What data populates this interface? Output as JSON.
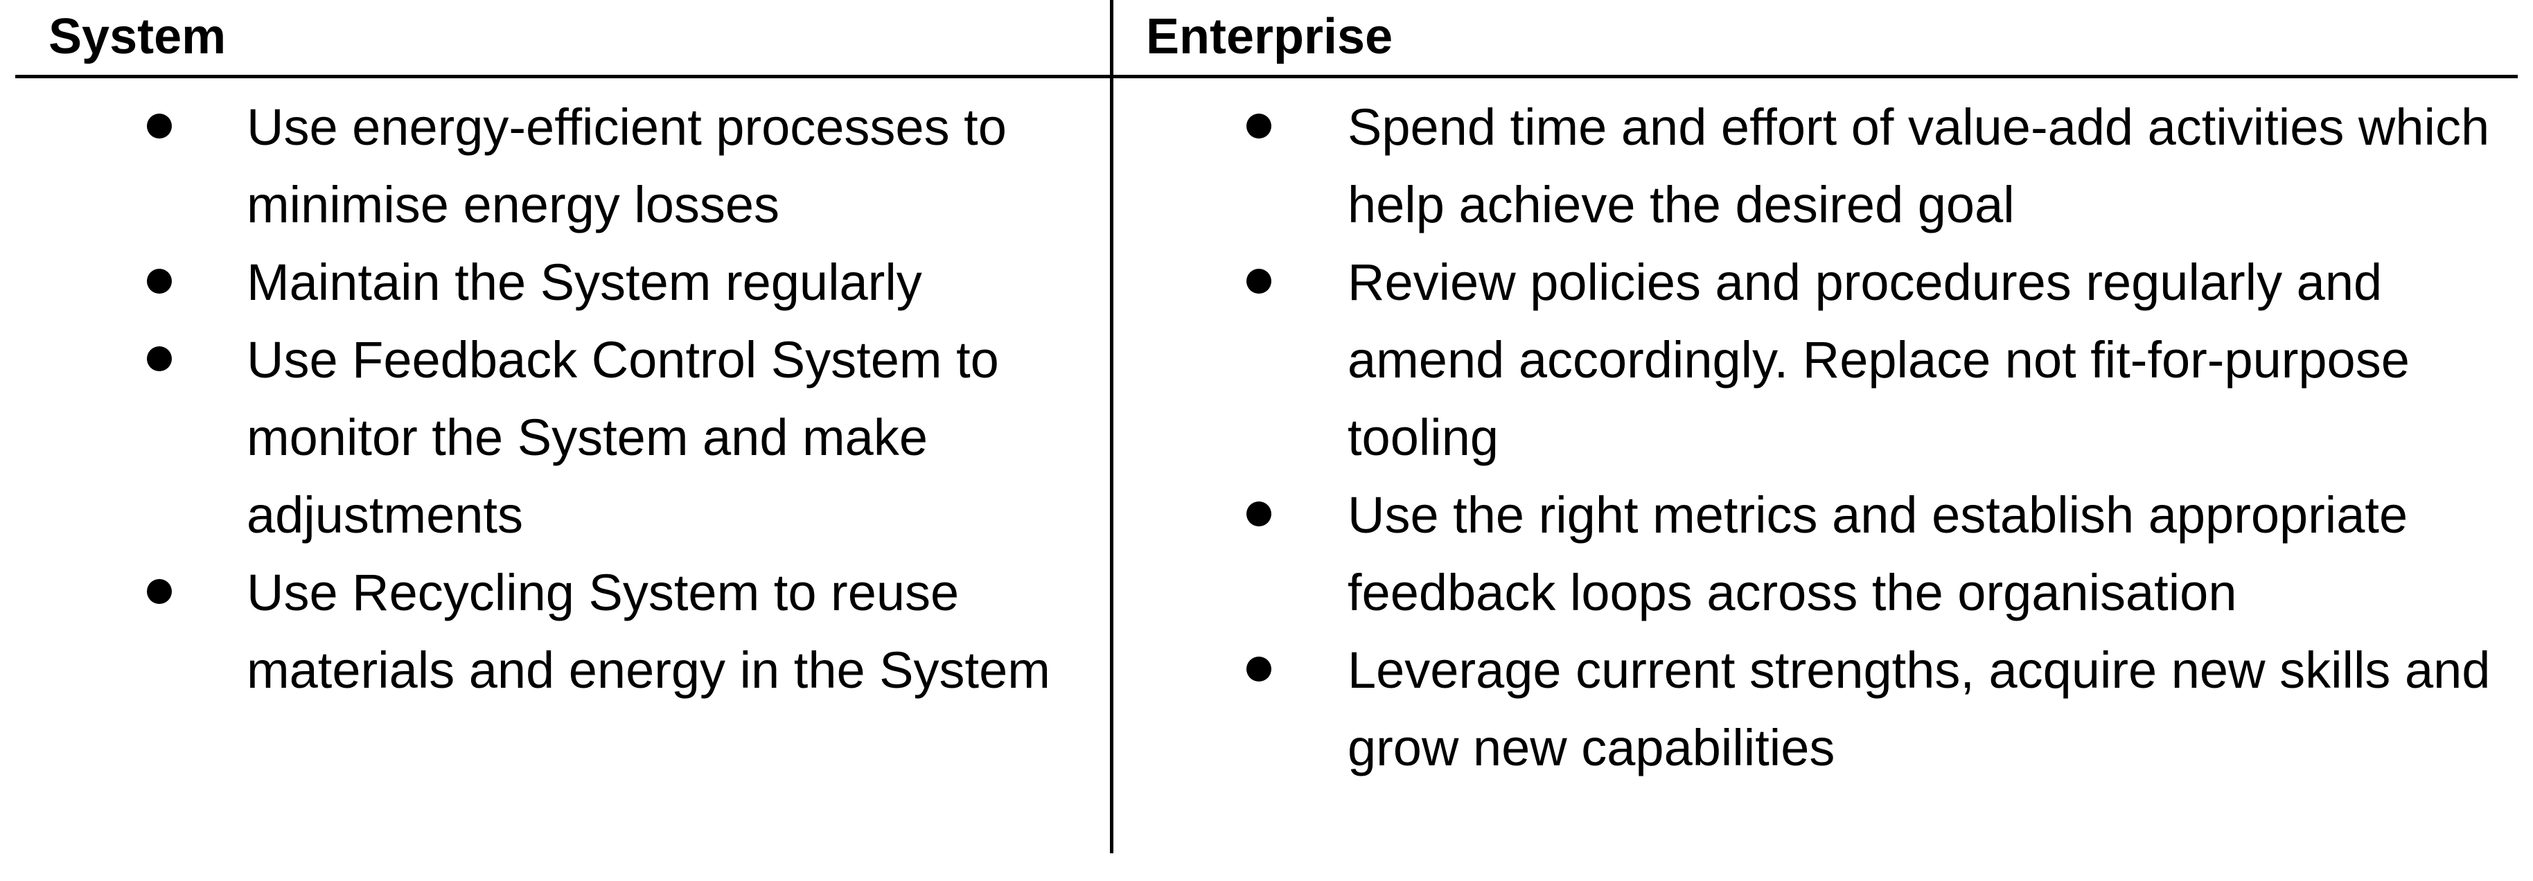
{
  "table": {
    "headers": {
      "system": "System",
      "enterprise": "Enterprise"
    },
    "system_items": [
      "Use energy-efficient processes to minimise energy losses",
      "Maintain the System regularly",
      "Use Feedback Control System to monitor the System and make adjustments",
      "Use Recycling System to reuse materials and energy in the System"
    ],
    "enterprise_items": [
      "Spend time and effort of value-add activities which help achieve the desired goal",
      "Review policies and procedures regularly and amend accordingly. Replace not fit-for-purpose tooling",
      "Use the right metrics and establish appropriate feedback loops across the organisation",
      "Leverage current strengths, acquire new skills and grow new capabilities"
    ]
  },
  "icons": {
    "bullet": "bullet-dot-icon"
  },
  "colors": {
    "text": "#000000",
    "rules": "#000000",
    "background": "#ffffff"
  }
}
